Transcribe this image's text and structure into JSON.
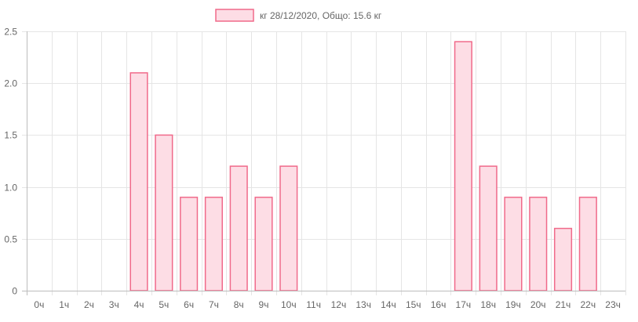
{
  "colors": {
    "bar_fill": "#fddde5",
    "bar_stroke": "#f06a8a",
    "grid": "#e5e5e5",
    "axis": "#bdbdbd",
    "text": "#666666"
  },
  "chart_data": {
    "type": "bar",
    "title": "",
    "legend": {
      "label": "кг 28/12/2020, Общо: 15.6 кг",
      "placement": "top"
    },
    "categories": [
      "0ч",
      "1ч",
      "2ч",
      "3ч",
      "4ч",
      "5ч",
      "6ч",
      "7ч",
      "8ч",
      "9ч",
      "10ч",
      "11ч",
      "12ч",
      "13ч",
      "14ч",
      "15ч",
      "16ч",
      "17ч",
      "18ч",
      "19ч",
      "20ч",
      "21ч",
      "22ч",
      "23ч"
    ],
    "values": [
      0,
      0,
      0,
      0,
      2.1,
      1.5,
      0.9,
      0.9,
      1.2,
      0.9,
      1.2,
      0,
      0,
      0,
      0,
      0,
      0,
      2.4,
      1.2,
      0.9,
      0.9,
      0.6,
      0.9,
      0
    ],
    "yticks": [
      "0",
      "0.5",
      "1.0",
      "1.5",
      "2.0",
      "2.5"
    ],
    "ylim": [
      0,
      2.5
    ],
    "xlabel": "",
    "ylabel": "",
    "grid": true
  }
}
